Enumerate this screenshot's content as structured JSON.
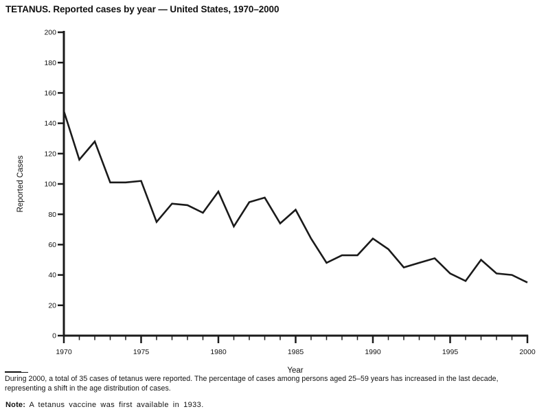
{
  "title": "TETANUS. Reported cases by year — United States, 1970–2000",
  "chart_data": {
    "type": "line",
    "title": "TETANUS. Reported cases by year — United States, 1970–2000",
    "xlabel": "Year",
    "ylabel": "Reported Cases",
    "x": [
      1970,
      1971,
      1972,
      1973,
      1974,
      1975,
      1976,
      1977,
      1978,
      1979,
      1980,
      1981,
      1982,
      1983,
      1984,
      1985,
      1986,
      1987,
      1988,
      1989,
      1990,
      1991,
      1992,
      1993,
      1994,
      1995,
      1996,
      1997,
      1998,
      1999,
      2000
    ],
    "values": [
      148,
      116,
      128,
      101,
      101,
      102,
      75,
      87,
      86,
      81,
      95,
      72,
      88,
      91,
      74,
      83,
      64,
      48,
      53,
      53,
      64,
      57,
      45,
      48,
      51,
      41,
      36,
      50,
      41,
      40,
      35
    ],
    "ylim": [
      0,
      200
    ],
    "ytick_step": 20,
    "yticks": [
      0,
      20,
      40,
      60,
      80,
      100,
      120,
      140,
      160,
      180,
      200
    ],
    "xticks_labeled": [
      1970,
      1975,
      1980,
      1985,
      1990,
      1995,
      2000
    ],
    "xtick_minor_every": 1,
    "grid": "off",
    "legend": "none",
    "line_color": "#1a1a1a",
    "axis_color": "#1a1a1a"
  },
  "footnote": {
    "line1": "During 2000, a total of 35 cases of tetanus were reported. The percentage of cases among persons aged 25–59 years has increased in the last decade,",
    "line2": "representing a shift in the age distribution of cases."
  },
  "note": {
    "label": "Note:",
    "text": " A tetanus vaccine was first available in 1933."
  }
}
